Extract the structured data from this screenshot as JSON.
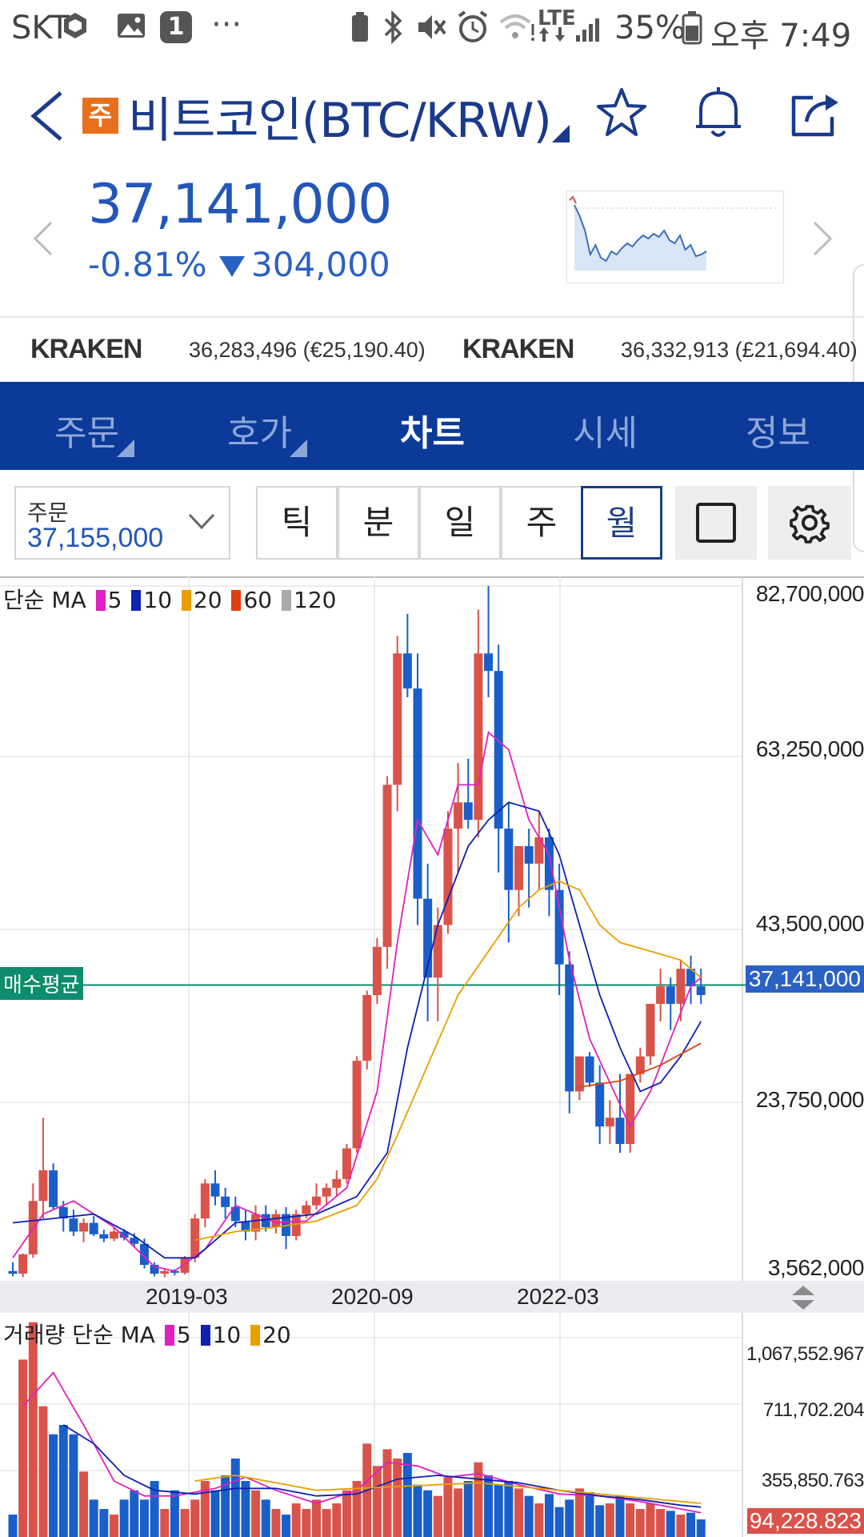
{
  "status_bar": {
    "carrier": "SKT",
    "notification_count": "1",
    "more": "···",
    "network": "LTE",
    "battery": "35%",
    "time": "오후 7:49"
  },
  "header": {
    "badge": "주",
    "title": "비트코인(BTC/KRW)"
  },
  "quote": {
    "price": "37,141,000",
    "change_percent": "-0.81%",
    "change_amount": "304,000",
    "direction": "down",
    "color": "#2356b9"
  },
  "exchanges": [
    {
      "name": "KRAKEN",
      "value": "36,283,496 (€25,190.40)"
    },
    {
      "name": "KRAKEN",
      "value": "36,332,913 (£21,694.40)"
    }
  ],
  "tabs": [
    {
      "label": "주문",
      "active": false,
      "has_menu": true
    },
    {
      "label": "호가",
      "active": false,
      "has_menu": true
    },
    {
      "label": "차트",
      "active": true,
      "has_menu": false
    },
    {
      "label": "시세",
      "active": false,
      "has_menu": false
    },
    {
      "label": "정보",
      "active": false,
      "has_menu": false
    }
  ],
  "order_select": {
    "label": "주문",
    "value": "37,155,000"
  },
  "periods": [
    {
      "label": "틱",
      "selected": false
    },
    {
      "label": "분",
      "selected": false
    },
    {
      "label": "일",
      "selected": false
    },
    {
      "label": "주",
      "selected": false
    },
    {
      "label": "월",
      "selected": true
    }
  ],
  "icons": [
    "back-icon",
    "star-icon",
    "bell-icon",
    "share-icon",
    "chevron-left-icon",
    "chevron-right-icon",
    "square-icon",
    "gear-icon"
  ],
  "chart_data": [
    {
      "type": "candlestick",
      "legend": {
        "prefix": "단순 MA",
        "items": [
          {
            "label": "5",
            "color": "#e020c0"
          },
          {
            "label": "10",
            "color": "#1020b0"
          },
          {
            "label": "20",
            "color": "#e8a000"
          },
          {
            "label": "60",
            "color": "#e04010"
          },
          {
            "label": "120",
            "color": "#aaaaaa"
          }
        ]
      },
      "y_ticks": [
        "82,700,000",
        "63,250,000",
        "43,500,000",
        "23,750,000",
        "3,562,000"
      ],
      "ylim": [
        3562000,
        82700000
      ],
      "x_ticks": [
        "2019-03",
        "2020-09",
        "2022-03"
      ],
      "average_line": {
        "label": "매수평균",
        "value": 37141000,
        "value_label": "37,141,000",
        "color": "#0d8c6e"
      },
      "up_color": "#d9534a",
      "down_color": "#1a5fc9",
      "ohlc": [
        [
          4.5,
          5.5,
          3.9,
          4.2
        ],
        [
          4.2,
          6.5,
          3.8,
          6.4
        ],
        [
          6.4,
          14.5,
          6,
          12.5
        ],
        [
          12.5,
          22,
          10.5,
          16
        ],
        [
          16,
          16.8,
          11.5,
          11.8
        ],
        [
          11.8,
          12.5,
          9,
          10.5
        ],
        [
          10.5,
          11.5,
          8.5,
          9
        ],
        [
          9,
          10.5,
          7.8,
          10
        ],
        [
          10,
          10.8,
          8.5,
          8.7
        ],
        [
          8.7,
          9.2,
          7.8,
          8.2
        ],
        [
          8.2,
          9.5,
          7.9,
          9
        ],
        [
          9,
          9.3,
          8,
          8.3
        ],
        [
          8.3,
          8.8,
          7.3,
          7.6
        ],
        [
          7.6,
          8.2,
          4.8,
          5.2
        ],
        [
          5.2,
          5.5,
          3.9,
          4.2
        ],
        [
          4.2,
          4.8,
          3.8,
          4.5
        ],
        [
          4.5,
          4.7,
          4,
          4.3
        ],
        [
          4.3,
          6.2,
          4.1,
          6
        ],
        [
          6,
          11,
          5.5,
          10.5
        ],
        [
          10.5,
          15,
          9.5,
          14.5
        ],
        [
          14.5,
          16,
          12,
          13
        ],
        [
          13,
          14,
          10.5,
          11.8
        ],
        [
          11.8,
          13,
          9.5,
          10.2
        ],
        [
          10.2,
          11.5,
          8,
          9
        ],
        [
          9,
          12,
          8,
          11
        ],
        [
          11,
          12,
          9,
          9.5
        ],
        [
          9.5,
          11.5,
          8.8,
          11
        ],
        [
          11,
          11.8,
          7,
          8.5
        ],
        [
          8.5,
          11.5,
          8,
          11
        ],
        [
          11,
          12.5,
          10.5,
          12
        ],
        [
          12,
          14.5,
          11.5,
          13
        ],
        [
          13,
          14.5,
          12,
          14
        ],
        [
          14,
          16,
          13,
          15
        ],
        [
          15,
          19,
          14.5,
          18.5
        ],
        [
          18.5,
          29,
          18,
          28.5
        ],
        [
          28.5,
          36.5,
          27.5,
          36
        ],
        [
          36,
          42.5,
          35,
          41.5
        ],
        [
          41.5,
          61,
          39,
          60
        ],
        [
          60,
          77,
          57,
          75
        ],
        [
          75,
          79.5,
          70,
          71
        ],
        [
          71,
          75,
          44,
          47
        ],
        [
          47,
          51,
          33,
          38
        ],
        [
          38,
          46,
          33,
          44
        ],
        [
          44,
          57,
          43,
          55
        ],
        [
          55,
          62.5,
          50,
          58
        ],
        [
          58,
          63,
          55,
          56
        ],
        [
          56,
          80,
          54,
          75
        ],
        [
          75,
          82.7,
          70,
          73
        ],
        [
          73,
          76,
          50,
          55
        ],
        [
          55,
          58,
          42,
          48
        ],
        [
          48,
          52,
          45,
          53
        ],
        [
          53,
          55,
          46,
          51
        ],
        [
          51,
          57,
          48,
          54
        ],
        [
          54,
          55,
          45,
          48
        ],
        [
          48,
          51,
          36,
          39.5
        ],
        [
          39.5,
          41,
          22.5,
          25
        ],
        [
          25,
          29,
          24,
          29
        ],
        [
          29,
          29.5,
          25.5,
          26
        ],
        [
          26,
          28,
          19,
          21
        ],
        [
          21,
          24,
          19,
          22
        ],
        [
          22,
          27,
          18,
          19
        ],
        [
          19,
          24.5,
          18,
          27
        ],
        [
          27,
          30,
          26,
          29
        ],
        [
          29,
          35,
          28,
          35
        ],
        [
          35,
          39,
          33,
          37
        ],
        [
          37,
          38,
          32,
          35
        ],
        [
          35,
          40,
          33,
          39
        ],
        [
          39,
          40.5,
          35,
          37
        ],
        [
          37,
          39,
          35,
          36
        ]
      ],
      "ma": {
        "5": [
          [
            0,
            6
          ],
          [
            3,
            11
          ],
          [
            6,
            12.5
          ],
          [
            10,
            9.5
          ],
          [
            14,
            5
          ],
          [
            16,
            4.5
          ],
          [
            19,
            7
          ],
          [
            22,
            12
          ],
          [
            26,
            10
          ],
          [
            29,
            10.2
          ],
          [
            33,
            14
          ],
          [
            36,
            25
          ],
          [
            38,
            42
          ],
          [
            40,
            56
          ],
          [
            42,
            52
          ],
          [
            44,
            60
          ],
          [
            46,
            60
          ],
          [
            47,
            66
          ],
          [
            49,
            64
          ],
          [
            51,
            56
          ],
          [
            53,
            52
          ],
          [
            55,
            40
          ],
          [
            57,
            31
          ],
          [
            59,
            26
          ],
          [
            61,
            21
          ],
          [
            63,
            25
          ],
          [
            65,
            31
          ],
          [
            67,
            37
          ],
          [
            68,
            38
          ]
        ],
        "10": [
          [
            0,
            10
          ],
          [
            4,
            10.5
          ],
          [
            8,
            11
          ],
          [
            12,
            8.5
          ],
          [
            15,
            6
          ],
          [
            18,
            6
          ],
          [
            22,
            10
          ],
          [
            26,
            10.5
          ],
          [
            30,
            11
          ],
          [
            34,
            13
          ],
          [
            37,
            18
          ],
          [
            39,
            30
          ],
          [
            42,
            44
          ],
          [
            45,
            53
          ],
          [
            47,
            56
          ],
          [
            49,
            58
          ],
          [
            52,
            57
          ],
          [
            54,
            52
          ],
          [
            56,
            44
          ],
          [
            58,
            36
          ],
          [
            60,
            30
          ],
          [
            62,
            25
          ],
          [
            64,
            26
          ],
          [
            66,
            29
          ],
          [
            68,
            33
          ]
        ],
        "20": [
          [
            18,
            8
          ],
          [
            22,
            9
          ],
          [
            26,
            9.5
          ],
          [
            30,
            10.2
          ],
          [
            34,
            12
          ],
          [
            36,
            15
          ],
          [
            38,
            20
          ],
          [
            41,
            28
          ],
          [
            44,
            36
          ],
          [
            47,
            41
          ],
          [
            50,
            46
          ],
          [
            52,
            48
          ],
          [
            54,
            49
          ],
          [
            56,
            48
          ],
          [
            58,
            44
          ],
          [
            60,
            42
          ],
          [
            63,
            41
          ],
          [
            66,
            40
          ],
          [
            68,
            38
          ]
        ],
        "60": [
          [
            56,
            25.5
          ],
          [
            60,
            26.2
          ],
          [
            64,
            28
          ],
          [
            68,
            30.5
          ]
        ]
      }
    },
    {
      "type": "bar",
      "legend": {
        "prefix": "거래량 단순 MA",
        "items": [
          {
            "label": "5",
            "color": "#e020c0"
          },
          {
            "label": "10",
            "color": "#1020b0"
          },
          {
            "label": "20",
            "color": "#e8a000"
          }
        ]
      },
      "y_ticks": [
        "1,067,552.967",
        "711,702.204",
        "355,850.763"
      ],
      "last_value_label": "94,228.823",
      "ylim": [
        0,
        1200000
      ],
      "values": [
        120000,
        950000,
        1150000,
        700000,
        550000,
        600000,
        550000,
        350000,
        200000,
        150000,
        120000,
        200000,
        250000,
        200000,
        300000,
        150000,
        250000,
        150000,
        200000,
        300000,
        250000,
        330000,
        420000,
        300000,
        250000,
        200000,
        150000,
        120000,
        180000,
        150000,
        200000,
        150000,
        180000,
        250000,
        300000,
        500000,
        380000,
        470000,
        420000,
        450000,
        280000,
        250000,
        220000,
        320000,
        260000,
        300000,
        400000,
        330000,
        280000,
        300000,
        260000,
        220000,
        180000,
        230000,
        160000,
        200000,
        260000,
        240000,
        170000,
        180000,
        220000,
        180000,
        150000,
        180000,
        150000,
        140000,
        120000,
        130000,
        94228
      ],
      "ma": {
        "5": [
          [
            1,
            700000
          ],
          [
            4,
            880000
          ],
          [
            7,
            600000
          ],
          [
            10,
            300000
          ],
          [
            13,
            220000
          ],
          [
            16,
            220000
          ],
          [
            20,
            260000
          ],
          [
            23,
            320000
          ],
          [
            26,
            250000
          ],
          [
            30,
            180000
          ],
          [
            34,
            250000
          ],
          [
            37,
            400000
          ],
          [
            40,
            380000
          ],
          [
            43,
            320000
          ],
          [
            46,
            340000
          ],
          [
            50,
            280000
          ],
          [
            54,
            230000
          ],
          [
            58,
            220000
          ],
          [
            62,
            190000
          ],
          [
            66,
            150000
          ],
          [
            68,
            130000
          ]
        ],
        "10": [
          [
            5,
            600000
          ],
          [
            8,
            500000
          ],
          [
            11,
            330000
          ],
          [
            14,
            250000
          ],
          [
            18,
            230000
          ],
          [
            22,
            260000
          ],
          [
            26,
            260000
          ],
          [
            30,
            220000
          ],
          [
            34,
            230000
          ],
          [
            38,
            310000
          ],
          [
            42,
            330000
          ],
          [
            46,
            310000
          ],
          [
            50,
            290000
          ],
          [
            54,
            250000
          ],
          [
            58,
            220000
          ],
          [
            62,
            200000
          ],
          [
            66,
            170000
          ],
          [
            68,
            160000
          ]
        ],
        "20": [
          [
            18,
            300000
          ],
          [
            22,
            330000
          ],
          [
            26,
            290000
          ],
          [
            30,
            250000
          ],
          [
            34,
            260000
          ],
          [
            38,
            270000
          ],
          [
            42,
            280000
          ],
          [
            46,
            290000
          ],
          [
            50,
            270000
          ],
          [
            54,
            250000
          ],
          [
            58,
            230000
          ],
          [
            62,
            210000
          ],
          [
            66,
            190000
          ],
          [
            68,
            180000
          ]
        ]
      }
    }
  ]
}
